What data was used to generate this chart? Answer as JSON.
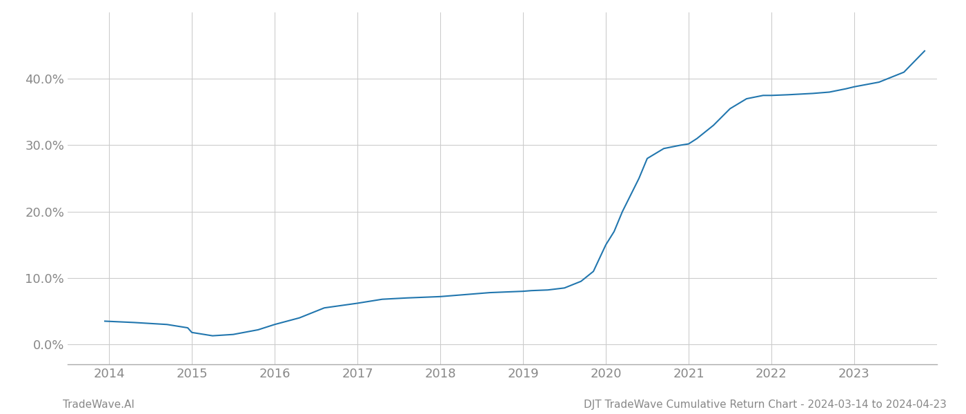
{
  "x_years": [
    2013.95,
    2014.3,
    2014.7,
    2014.95,
    2015.0,
    2015.25,
    2015.5,
    2015.8,
    2016.0,
    2016.3,
    2016.6,
    2017.0,
    2017.3,
    2017.6,
    2018.0,
    2018.3,
    2018.6,
    2019.0,
    2019.1,
    2019.3,
    2019.5,
    2019.7,
    2019.85,
    2020.0,
    2020.1,
    2020.2,
    2020.4,
    2020.5,
    2020.7,
    2020.9,
    2021.0,
    2021.1,
    2021.3,
    2021.5,
    2021.7,
    2021.9,
    2022.0,
    2022.2,
    2022.5,
    2022.7,
    2022.9,
    2023.0,
    2023.3,
    2023.6,
    2023.85
  ],
  "y_values": [
    3.5,
    3.3,
    3.0,
    2.5,
    1.8,
    1.3,
    1.5,
    2.2,
    3.0,
    4.0,
    5.5,
    6.2,
    6.8,
    7.0,
    7.2,
    7.5,
    7.8,
    8.0,
    8.1,
    8.2,
    8.5,
    9.5,
    11.0,
    15.0,
    17.0,
    20.0,
    25.0,
    28.0,
    29.5,
    30.0,
    30.2,
    31.0,
    33.0,
    35.5,
    37.0,
    37.5,
    37.5,
    37.6,
    37.8,
    38.0,
    38.5,
    38.8,
    39.5,
    41.0,
    44.2
  ],
  "line_color": "#2176ae",
  "line_width": 1.5,
  "background_color": "#ffffff",
  "grid_color": "#cccccc",
  "grid_linewidth": 0.8,
  "tick_color": "#888888",
  "footer_left": "TradeWave.AI",
  "footer_right": "DJT TradeWave Cumulative Return Chart - 2024-03-14 to 2024-04-23",
  "xlim": [
    2013.5,
    2024.0
  ],
  "ylim": [
    -3.0,
    50.0
  ],
  "xticks": [
    2014,
    2015,
    2016,
    2017,
    2018,
    2019,
    2020,
    2021,
    2022,
    2023
  ],
  "yticks": [
    0.0,
    10.0,
    20.0,
    30.0,
    40.0
  ],
  "ytick_labels": [
    "0.0%",
    "10.0%",
    "20.0%",
    "30.0%",
    "40.0%"
  ],
  "tick_fontsize": 13,
  "footer_fontsize": 11
}
